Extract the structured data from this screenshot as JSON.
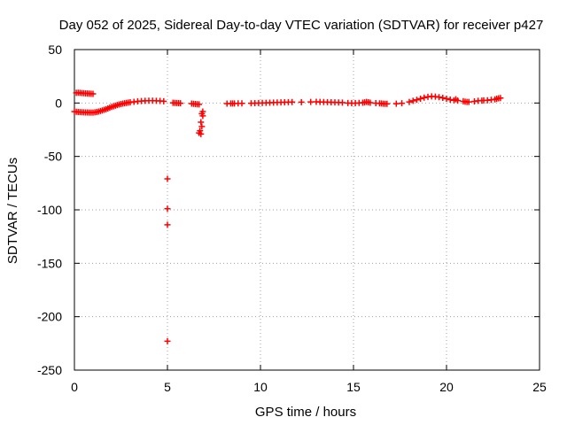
{
  "chart_data": {
    "type": "scatter",
    "title": "Day 052 of 2025, Sidereal Day-to-day VTEC variation (SDTVAR) for receiver p427",
    "xlabel": "GPS time / hours",
    "ylabel": "SDTVAR / TECUs",
    "xlim": [
      0,
      25
    ],
    "ylim": [
      -250,
      50
    ],
    "xticks": [
      0,
      5,
      10,
      15,
      20,
      25
    ],
    "yticks": [
      50,
      0,
      -50,
      -100,
      -150,
      -200,
      -250
    ],
    "xtick_labels": [
      "0",
      "5",
      "10",
      "15",
      "20",
      "25"
    ],
    "ytick_labels": [
      "50",
      "0",
      "-50",
      "-100",
      "-150",
      "-200",
      "-250"
    ],
    "grid": true,
    "marker": "+",
    "color": "#ff0000",
    "series": [
      {
        "name": "SDTVAR",
        "points": [
          [
            0.0,
            -8.0
          ],
          [
            0.1,
            -8.2
          ],
          [
            0.2,
            -8.4
          ],
          [
            0.3,
            -8.5
          ],
          [
            0.4,
            -8.6
          ],
          [
            0.5,
            -8.7
          ],
          [
            0.6,
            -8.8
          ],
          [
            0.7,
            -8.8
          ],
          [
            0.8,
            -8.9
          ],
          [
            0.9,
            -8.9
          ],
          [
            1.0,
            -8.9
          ],
          [
            1.1,
            -8.7
          ],
          [
            1.2,
            -8.4
          ],
          [
            1.3,
            -8.0
          ],
          [
            1.4,
            -7.5
          ],
          [
            1.5,
            -7.0
          ],
          [
            1.6,
            -6.4
          ],
          [
            1.7,
            -5.8
          ],
          [
            1.8,
            -5.1
          ],
          [
            1.9,
            -4.4
          ],
          [
            2.0,
            -3.7
          ],
          [
            2.1,
            -3.1
          ],
          [
            2.2,
            -2.5
          ],
          [
            2.3,
            -1.9
          ],
          [
            2.4,
            -1.4
          ],
          [
            2.5,
            -1.0
          ],
          [
            2.6,
            -0.6
          ],
          [
            2.7,
            -0.2
          ],
          [
            2.8,
            0.1
          ],
          [
            2.9,
            0.4
          ],
          [
            3.0,
            0.7
          ],
          [
            3.2,
            1.1
          ],
          [
            3.4,
            1.5
          ],
          [
            3.6,
            1.8
          ],
          [
            3.8,
            2.0
          ],
          [
            4.0,
            2.1
          ],
          [
            4.2,
            2.1
          ],
          [
            4.4,
            2.0
          ],
          [
            4.6,
            1.9
          ],
          [
            4.8,
            1.6
          ],
          [
            0.1,
            9.5
          ],
          [
            0.2,
            9.6
          ],
          [
            0.3,
            9.5
          ],
          [
            0.4,
            9.3
          ],
          [
            0.5,
            9.2
          ],
          [
            0.6,
            9.0
          ],
          [
            0.7,
            8.9
          ],
          [
            0.8,
            8.8
          ],
          [
            0.9,
            8.7
          ],
          [
            1.0,
            8.6
          ],
          [
            5.0,
            -71
          ],
          [
            5.0,
            -99
          ],
          [
            5.0,
            -114
          ],
          [
            5.0,
            -223
          ],
          [
            5.3,
            0.2
          ],
          [
            5.4,
            0.1
          ],
          [
            5.5,
            0.0
          ],
          [
            5.6,
            -0.1
          ],
          [
            5.7,
            -0.2
          ],
          [
            6.3,
            -0.6
          ],
          [
            6.4,
            -0.8
          ],
          [
            6.5,
            -1.0
          ],
          [
            6.6,
            -1.2
          ],
          [
            6.7,
            -1.3
          ],
          [
            6.7,
            -28
          ],
          [
            6.75,
            -26
          ],
          [
            6.8,
            -18
          ],
          [
            6.85,
            -10
          ],
          [
            6.9,
            -8
          ],
          [
            6.8,
            -29
          ],
          [
            6.85,
            -22
          ],
          [
            6.9,
            -12
          ],
          [
            8.2,
            -0.6
          ],
          [
            8.4,
            -0.5
          ],
          [
            8.5,
            -0.5
          ],
          [
            8.6,
            -0.4
          ],
          [
            8.8,
            -0.3
          ],
          [
            9.0,
            -0.3
          ],
          [
            9.5,
            -0.2
          ],
          [
            9.7,
            -0.1
          ],
          [
            9.9,
            0.0
          ],
          [
            10.1,
            0.1
          ],
          [
            10.3,
            0.2
          ],
          [
            10.5,
            0.3
          ],
          [
            10.7,
            0.4
          ],
          [
            10.9,
            0.5
          ],
          [
            11.1,
            0.6
          ],
          [
            11.3,
            0.7
          ],
          [
            11.5,
            0.8
          ],
          [
            11.7,
            0.9
          ],
          [
            12.2,
            0.8
          ],
          [
            12.7,
            1.0
          ],
          [
            13.0,
            1.1
          ],
          [
            13.2,
            1.0
          ],
          [
            13.4,
            0.9
          ],
          [
            13.6,
            0.8
          ],
          [
            13.8,
            0.7
          ],
          [
            14.0,
            0.6
          ],
          [
            14.2,
            0.5
          ],
          [
            14.4,
            0.4
          ],
          [
            14.7,
            0.0
          ],
          [
            14.9,
            -0.1
          ],
          [
            15.1,
            -0.1
          ],
          [
            15.3,
            0.1
          ],
          [
            15.5,
            0.3
          ],
          [
            15.6,
            0.6
          ],
          [
            15.7,
            1.0
          ],
          [
            15.8,
            0.7
          ],
          [
            15.9,
            0.3
          ],
          [
            16.2,
            -0.1
          ],
          [
            16.4,
            -0.3
          ],
          [
            16.5,
            -0.5
          ],
          [
            16.6,
            -0.7
          ],
          [
            16.7,
            -0.8
          ],
          [
            16.8,
            -0.8
          ],
          [
            17.3,
            -0.7
          ],
          [
            17.6,
            -0.2
          ],
          [
            18.0,
            1.0
          ],
          [
            18.2,
            2.0
          ],
          [
            18.4,
            3.0
          ],
          [
            18.6,
            4.0
          ],
          [
            18.8,
            5.0
          ],
          [
            19.0,
            5.8
          ],
          [
            19.2,
            6.2
          ],
          [
            19.4,
            6.0
          ],
          [
            19.6,
            5.5
          ],
          [
            19.8,
            4.8
          ],
          [
            20.0,
            4.0
          ],
          [
            20.2,
            3.2
          ],
          [
            20.4,
            2.6
          ],
          [
            20.5,
            3.5
          ],
          [
            20.6,
            2.2
          ],
          [
            20.9,
            1.6
          ],
          [
            21.0,
            1.2
          ],
          [
            21.1,
            1.0
          ],
          [
            21.2,
            1.0
          ],
          [
            21.5,
            1.5
          ],
          [
            21.7,
            2.0
          ],
          [
            21.9,
            2.2
          ],
          [
            22.0,
            2.4
          ],
          [
            22.2,
            2.6
          ],
          [
            22.4,
            3.0
          ],
          [
            22.6,
            3.4
          ],
          [
            22.7,
            4.0
          ],
          [
            22.8,
            4.4
          ],
          [
            22.9,
            4.6
          ]
        ]
      }
    ]
  }
}
